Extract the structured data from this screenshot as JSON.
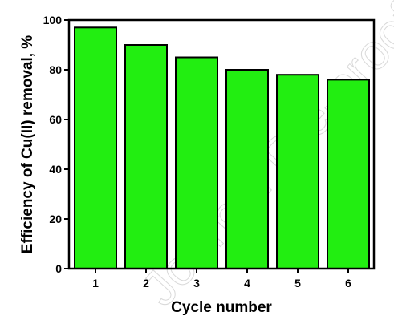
{
  "chart_data": {
    "type": "bar",
    "categories": [
      "1",
      "2",
      "3",
      "4",
      "5",
      "6"
    ],
    "values": [
      97,
      90,
      85,
      80,
      78,
      76
    ],
    "title": "",
    "xlabel": "Cycle number",
    "ylabel": "Efficiency of Cu(II) removal, %",
    "ylim": [
      0,
      100
    ],
    "yticks": [
      0,
      20,
      40,
      60,
      80,
      100
    ],
    "grid": false,
    "legend": "none",
    "bar_color": "#22ee11",
    "bar_edge_color": "#000000"
  },
  "watermark": "Journal Pre-proof"
}
